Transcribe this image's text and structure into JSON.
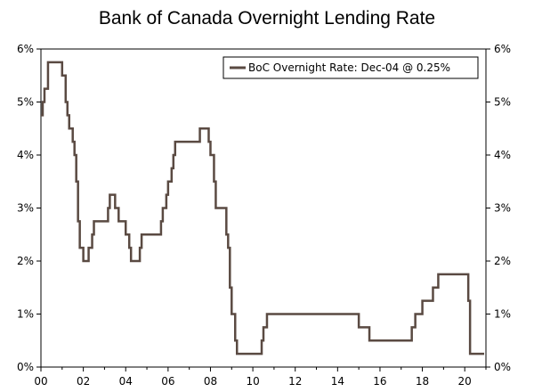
{
  "chart_data": {
    "type": "line",
    "title": "Bank of Canada Overnight Lending Rate",
    "xlabel": "",
    "ylabel": "",
    "x_tick_labels": [
      "00",
      "02",
      "04",
      "06",
      "08",
      "10",
      "12",
      "14",
      "16",
      "18",
      "20"
    ],
    "y_tick_labels": [
      "0%",
      "1%",
      "2%",
      "3%",
      "4%",
      "5%",
      "6%"
    ],
    "x_range": [
      "2000-01",
      "2020-12"
    ],
    "ylim": [
      0,
      6
    ],
    "grid": false,
    "legend_position": "top-right",
    "secondary_y_axis": true,
    "series": [
      {
        "name": "BoC Overnight Rate: Dec-04 @ 0.25%",
        "color": "#5a4a42",
        "points": [
          [
            "2000-01",
            4.75
          ],
          [
            "2000-02",
            5.0
          ],
          [
            "2000-03",
            5.25
          ],
          [
            "2000-05",
            5.75
          ],
          [
            "2001-01",
            5.5
          ],
          [
            "2001-03",
            5.0
          ],
          [
            "2001-04",
            4.75
          ],
          [
            "2001-05",
            4.5
          ],
          [
            "2001-07",
            4.25
          ],
          [
            "2001-08",
            4.0
          ],
          [
            "2001-09",
            3.5
          ],
          [
            "2001-10",
            2.75
          ],
          [
            "2001-11",
            2.25
          ],
          [
            "2002-01",
            2.0
          ],
          [
            "2002-04",
            2.25
          ],
          [
            "2002-06",
            2.5
          ],
          [
            "2002-07",
            2.75
          ],
          [
            "2003-03",
            3.0
          ],
          [
            "2003-04",
            3.25
          ],
          [
            "2003-07",
            3.0
          ],
          [
            "2003-09",
            2.75
          ],
          [
            "2004-01",
            2.5
          ],
          [
            "2004-03",
            2.25
          ],
          [
            "2004-04",
            2.0
          ],
          [
            "2004-09",
            2.25
          ],
          [
            "2004-10",
            2.5
          ],
          [
            "2005-09",
            2.75
          ],
          [
            "2005-10",
            3.0
          ],
          [
            "2005-12",
            3.25
          ],
          [
            "2006-01",
            3.5
          ],
          [
            "2006-03",
            3.75
          ],
          [
            "2006-04",
            4.0
          ],
          [
            "2006-05",
            4.25
          ],
          [
            "2007-07",
            4.5
          ],
          [
            "2007-12",
            4.25
          ],
          [
            "2008-01",
            4.0
          ],
          [
            "2008-03",
            3.5
          ],
          [
            "2008-04",
            3.0
          ],
          [
            "2008-10",
            2.5
          ],
          [
            "2008-11",
            2.25
          ],
          [
            "2008-12",
            1.5
          ],
          [
            "2009-01",
            1.0
          ],
          [
            "2009-03",
            0.5
          ],
          [
            "2009-04",
            0.25
          ],
          [
            "2010-06",
            0.5
          ],
          [
            "2010-07",
            0.75
          ],
          [
            "2010-09",
            1.0
          ],
          [
            "2015-01",
            0.75
          ],
          [
            "2015-07",
            0.5
          ],
          [
            "2017-07",
            0.75
          ],
          [
            "2017-09",
            1.0
          ],
          [
            "2018-01",
            1.25
          ],
          [
            "2018-07",
            1.5
          ],
          [
            "2018-10",
            1.75
          ],
          [
            "2020-03",
            1.25
          ],
          [
            "2020-04",
            0.25
          ],
          [
            "2020-12",
            0.25
          ]
        ]
      }
    ]
  }
}
